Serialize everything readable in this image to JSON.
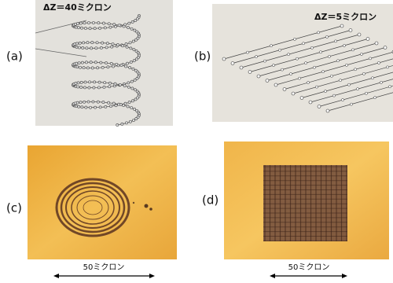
{
  "panels": [
    {
      "label": "(a)",
      "annotation": "ΔZ＝40ミクロン"
    },
    {
      "label": "(b)",
      "annotation": "ΔZ＝5ミクロン"
    },
    {
      "label": "(c)",
      "scale_bar": "50ミクロン"
    },
    {
      "label": "(d)",
      "scale_bar": "50ミクロン"
    }
  ]
}
